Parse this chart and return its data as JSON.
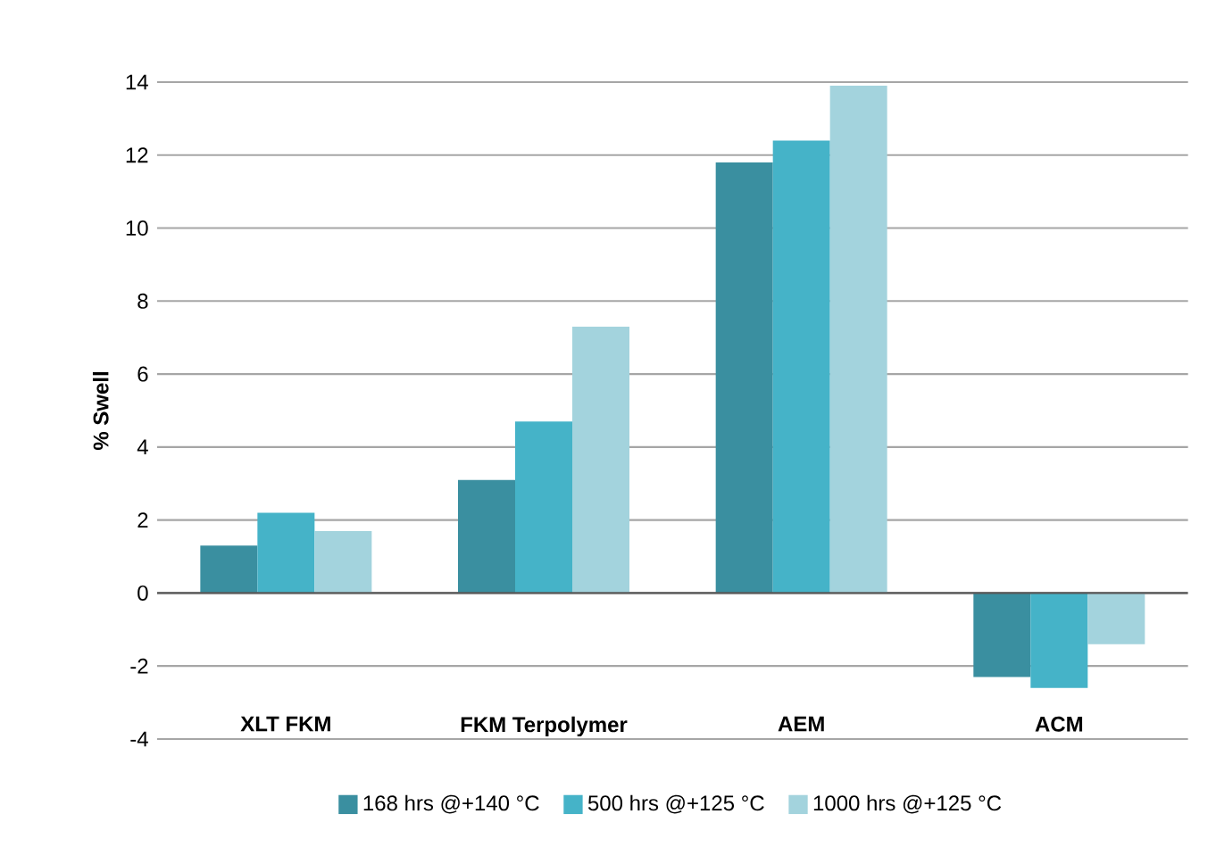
{
  "chart_data": {
    "type": "bar",
    "ylabel": "% Swell",
    "categories": [
      "XLT FKM",
      "FKM Terpolymer",
      "AEM",
      "ACM"
    ],
    "series": [
      {
        "name": "168 hrs @+140 °C",
        "color": "#3a8fa0",
        "values": [
          1.3,
          3.1,
          11.8,
          -2.3
        ]
      },
      {
        "name": "500 hrs @+125 °C",
        "color": "#45b3c8",
        "values": [
          2.2,
          4.7,
          12.4,
          -2.6
        ]
      },
      {
        "name": "1000 hrs @+125 °C",
        "color": "#a3d3dd",
        "values": [
          1.7,
          7.3,
          13.9,
          -1.4
        ]
      }
    ],
    "ylim": [
      -4,
      14
    ],
    "yticks": [
      -4,
      -2,
      0,
      2,
      4,
      6,
      8,
      10,
      12,
      14
    ],
    "grid": "y",
    "legend": "bottom"
  }
}
